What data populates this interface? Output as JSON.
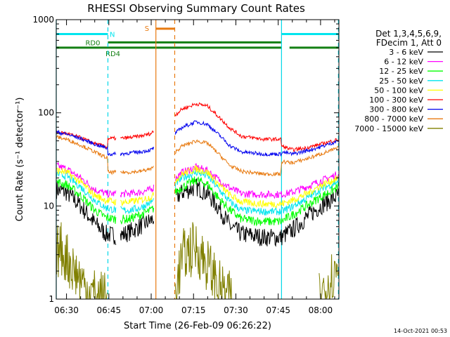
{
  "chart_data": {
    "type": "line",
    "title": "RHESSI Observing Summary Count Rates",
    "xlabel": "Start Time (26-Feb-09 06:26:22)",
    "ylabel": "Count Rate (s⁻¹ detector⁻¹)",
    "y_scale": "log",
    "ylim": [
      1,
      1000
    ],
    "y_ticks": [
      {
        "value": 1,
        "label": "1"
      },
      {
        "value": 10,
        "label": "10"
      },
      {
        "value": 100,
        "label": "100"
      },
      {
        "value": 1000,
        "label": "1000"
      }
    ],
    "x_range": [
      "06:26:22",
      "08:06:30"
    ],
    "x_ticks": [
      {
        "value": "06:30",
        "label": "06:30"
      },
      {
        "value": "06:45",
        "label": "06:45"
      },
      {
        "value": "07:00",
        "label": "07:00"
      },
      {
        "value": "07:15",
        "label": "07:15"
      },
      {
        "value": "07:30",
        "label": "07:30"
      },
      {
        "value": "07:45",
        "label": "07:45"
      },
      {
        "value": "08:00",
        "label": "08:00"
      }
    ],
    "grid": false,
    "legend_position": "right",
    "legend_header": [
      "Det 1,3,4,5,6,9,",
      "FDecim 1, Att 0"
    ],
    "footer_timestamp": "14-Oct-2021 00:53",
    "data_gaps": [
      [
        "06:47:30",
        "06:49:00"
      ],
      [
        "07:01:00",
        "07:08:30"
      ]
    ],
    "vertical_lines": [
      {
        "time": "06:26:22",
        "color": "#00d8e8",
        "style": "solid"
      },
      {
        "time": "06:44:40",
        "color": "#00d8e8",
        "style": "dashed"
      },
      {
        "time": "07:46:10",
        "color": "#00d8e8",
        "style": "solid"
      },
      {
        "time": "08:06:20",
        "color": "#00d8e8",
        "style": "dashed"
      },
      {
        "time": "07:01:40",
        "color": "#e87a10",
        "style": "solid"
      },
      {
        "time": "07:08:20",
        "color": "#e87a10",
        "style": "dashed"
      }
    ],
    "flag_bars": [
      {
        "label": "N",
        "color": "#00e5ee",
        "y": 700,
        "segments": [
          [
            "06:26:22",
            "06:44:40"
          ],
          [
            "07:46:10",
            "08:06:20"
          ]
        ]
      },
      {
        "label": "S",
        "color": "#e87a10",
        "y": 800,
        "segments": [
          [
            "07:01:40",
            "07:08:20"
          ]
        ]
      },
      {
        "label": "RD0",
        "color": "#137f13",
        "y": 570,
        "segments": [
          [
            "06:44:40",
            "07:46:00"
          ]
        ]
      },
      {
        "label": "RD4",
        "color": "#137f13",
        "y": 500,
        "segments": [
          [
            "06:26:22",
            "07:46:10"
          ],
          [
            "07:49:00",
            "08:06:20"
          ]
        ]
      }
    ],
    "series": [
      {
        "name": "3 - 6 keV",
        "color": "#000000",
        "noise": 0.1,
        "points": [
          [
            "06:26:30",
            15
          ],
          [
            "06:30:00",
            14
          ],
          [
            "06:35:00",
            10
          ],
          [
            "06:40:00",
            6.5
          ],
          [
            "06:44:00",
            5
          ],
          [
            "06:47:30",
            4.8
          ],
          [
            "06:49:00",
            4.8
          ],
          [
            "06:52:00",
            5.2
          ],
          [
            "06:56:00",
            6
          ],
          [
            "07:00:00",
            7
          ],
          [
            "07:01:00",
            7.5
          ],
          [
            "07:08:30",
            12
          ],
          [
            "07:11:00",
            14
          ],
          [
            "07:16:00",
            16
          ],
          [
            "07:20:00",
            13.5
          ],
          [
            "07:24:00",
            9.5
          ],
          [
            "07:28:00",
            6
          ],
          [
            "07:32:00",
            5
          ],
          [
            "07:40:00",
            4.6
          ],
          [
            "07:46:00",
            4.6
          ],
          [
            "07:50:00",
            5.5
          ],
          [
            "07:55:00",
            7.5
          ],
          [
            "08:00:00",
            10
          ],
          [
            "08:06:20",
            13
          ]
        ]
      },
      {
        "name": "6 - 12 keV",
        "color": "#ff00ff",
        "noise": 0.04,
        "points": [
          [
            "06:26:30",
            27
          ],
          [
            "06:30:00",
            25
          ],
          [
            "06:35:00",
            20
          ],
          [
            "06:40:00",
            15
          ],
          [
            "06:44:00",
            13.5
          ],
          [
            "06:47:30",
            13.5
          ],
          [
            "06:49:00",
            13.5
          ],
          [
            "06:52:00",
            13.5
          ],
          [
            "06:56:00",
            14
          ],
          [
            "07:00:00",
            15
          ],
          [
            "07:01:00",
            16
          ],
          [
            "07:08:30",
            20
          ],
          [
            "07:11:00",
            23
          ],
          [
            "07:16:00",
            26
          ],
          [
            "07:20:00",
            24
          ],
          [
            "07:24:00",
            19
          ],
          [
            "07:28:00",
            15.5
          ],
          [
            "07:32:00",
            13.5
          ],
          [
            "07:40:00",
            13.3
          ],
          [
            "07:46:00",
            13.3
          ],
          [
            "07:50:00",
            14
          ],
          [
            "07:55:00",
            16
          ],
          [
            "08:00:00",
            18.5
          ],
          [
            "08:06:20",
            22
          ]
        ]
      },
      {
        "name": "12 - 25 keV",
        "color": "#00ff00",
        "noise": 0.05,
        "points": [
          [
            "06:26:30",
            18
          ],
          [
            "06:30:00",
            17
          ],
          [
            "06:35:00",
            13
          ],
          [
            "06:40:00",
            9
          ],
          [
            "06:44:00",
            7.5
          ],
          [
            "06:47:30",
            7.2
          ],
          [
            "06:49:00",
            7.2
          ],
          [
            "06:52:00",
            7.2
          ],
          [
            "06:56:00",
            8
          ],
          [
            "07:00:00",
            9
          ],
          [
            "07:01:00",
            9.5
          ],
          [
            "07:08:30",
            14
          ],
          [
            "07:11:00",
            16
          ],
          [
            "07:16:00",
            19
          ],
          [
            "07:20:00",
            17
          ],
          [
            "07:24:00",
            12
          ],
          [
            "07:28:00",
            9
          ],
          [
            "07:32:00",
            7.2
          ],
          [
            "07:40:00",
            6.8
          ],
          [
            "07:46:00",
            6.8
          ],
          [
            "07:50:00",
            8
          ],
          [
            "07:55:00",
            10
          ],
          [
            "08:00:00",
            12.5
          ],
          [
            "08:06:20",
            16
          ]
        ]
      },
      {
        "name": "25 - 50 keV",
        "color": "#00e5ee",
        "noise": 0.04,
        "points": [
          [
            "06:26:30",
            22
          ],
          [
            "06:30:00",
            21
          ],
          [
            "06:35:00",
            16
          ],
          [
            "06:40:00",
            11.5
          ],
          [
            "06:44:00",
            9.5
          ],
          [
            "06:47:30",
            9
          ],
          [
            "06:49:00",
            9
          ],
          [
            "06:52:00",
            9
          ],
          [
            "06:56:00",
            9.5
          ],
          [
            "07:00:00",
            11
          ],
          [
            "07:01:00",
            11.5
          ],
          [
            "07:08:30",
            17
          ],
          [
            "07:11:00",
            20
          ],
          [
            "07:16:00",
            23
          ],
          [
            "07:20:00",
            21
          ],
          [
            "07:24:00",
            15
          ],
          [
            "07:28:00",
            11
          ],
          [
            "07:32:00",
            9
          ],
          [
            "07:40:00",
            8.7
          ],
          [
            "07:46:00",
            8.7
          ],
          [
            "07:50:00",
            9.8
          ],
          [
            "07:55:00",
            12
          ],
          [
            "08:00:00",
            15
          ],
          [
            "08:06:20",
            18.5
          ]
        ]
      },
      {
        "name": "50 - 100 keV",
        "color": "#ffff00",
        "noise": 0.04,
        "points": [
          [
            "06:26:30",
            24
          ],
          [
            "06:30:00",
            23
          ],
          [
            "06:35:00",
            18
          ],
          [
            "06:40:00",
            13
          ],
          [
            "06:44:00",
            11.5
          ],
          [
            "06:47:30",
            11
          ],
          [
            "06:49:00",
            11
          ],
          [
            "06:52:00",
            11
          ],
          [
            "06:56:00",
            11.5
          ],
          [
            "07:00:00",
            12.5
          ],
          [
            "07:01:00",
            13
          ],
          [
            "07:08:30",
            19
          ],
          [
            "07:11:00",
            22
          ],
          [
            "07:16:00",
            25
          ],
          [
            "07:20:00",
            23
          ],
          [
            "07:24:00",
            17
          ],
          [
            "07:28:00",
            13
          ],
          [
            "07:32:00",
            11
          ],
          [
            "07:40:00",
            10.5
          ],
          [
            "07:46:00",
            10.5
          ],
          [
            "07:50:00",
            11.5
          ],
          [
            "07:55:00",
            13.5
          ],
          [
            "08:00:00",
            16.5
          ],
          [
            "08:06:20",
            20
          ]
        ]
      },
      {
        "name": "100 - 300 keV",
        "color": "#ff0000",
        "noise": 0.02,
        "points": [
          [
            "06:26:30",
            62
          ],
          [
            "06:30:00",
            60
          ],
          [
            "06:35:00",
            54
          ],
          [
            "06:40:00",
            47
          ],
          [
            "06:44:00",
            43
          ],
          [
            "06:44:40",
            43
          ],
          [
            "06:44:41",
            53
          ],
          [
            "06:47:30",
            53
          ],
          [
            "06:49:00",
            53
          ],
          [
            "06:52:00",
            54
          ],
          [
            "06:56:00",
            56
          ],
          [
            "07:00:00",
            60
          ],
          [
            "07:01:00",
            64
          ],
          [
            "07:08:30",
            95
          ],
          [
            "07:11:00",
            110
          ],
          [
            "07:16:00",
            125
          ],
          [
            "07:20:00",
            118
          ],
          [
            "07:24:00",
            90
          ],
          [
            "07:28:00",
            68
          ],
          [
            "07:32:00",
            56
          ],
          [
            "07:40:00",
            52
          ],
          [
            "07:46:00",
            52
          ],
          [
            "07:46:10",
            44
          ],
          [
            "07:50:00",
            40
          ],
          [
            "07:55:00",
            42
          ],
          [
            "08:00:00",
            46
          ],
          [
            "08:06:20",
            52
          ]
        ]
      },
      {
        "name": "300 - 800 keV",
        "color": "#0000ee",
        "noise": 0.02,
        "points": [
          [
            "06:26:30",
            62
          ],
          [
            "06:30:00",
            59
          ],
          [
            "06:35:00",
            53
          ],
          [
            "06:40:00",
            46
          ],
          [
            "06:44:00",
            42
          ],
          [
            "06:44:40",
            42
          ],
          [
            "06:44:41",
            36
          ],
          [
            "06:47:30",
            36
          ],
          [
            "06:49:00",
            36
          ],
          [
            "06:52:00",
            37
          ],
          [
            "06:56:00",
            38
          ],
          [
            "07:00:00",
            40
          ],
          [
            "07:01:00",
            42
          ],
          [
            "07:08:30",
            60
          ],
          [
            "07:11:00",
            70
          ],
          [
            "07:16:00",
            80
          ],
          [
            "07:20:00",
            75
          ],
          [
            "07:24:00",
            58
          ],
          [
            "07:28:00",
            44
          ],
          [
            "07:32:00",
            38
          ],
          [
            "07:40:00",
            36
          ],
          [
            "07:46:00",
            36
          ],
          [
            "07:46:10",
            38
          ],
          [
            "07:50:00",
            36
          ],
          [
            "07:55:00",
            39
          ],
          [
            "08:00:00",
            43
          ],
          [
            "08:06:20",
            50
          ]
        ]
      },
      {
        "name": "800 - 7000 keV",
        "color": "#e87a10",
        "noise": 0.02,
        "points": [
          [
            "06:26:30",
            55
          ],
          [
            "06:30:00",
            52
          ],
          [
            "06:35:00",
            45
          ],
          [
            "06:40:00",
            38
          ],
          [
            "06:44:00",
            33
          ],
          [
            "06:44:40",
            33
          ],
          [
            "06:44:41",
            23
          ],
          [
            "06:47:30",
            23
          ],
          [
            "06:49:00",
            23
          ],
          [
            "06:52:00",
            23
          ],
          [
            "06:56:00",
            23.5
          ],
          [
            "07:00:00",
            25
          ],
          [
            "07:01:00",
            26
          ],
          [
            "07:08:30",
            38
          ],
          [
            "07:11:00",
            44
          ],
          [
            "07:16:00",
            50
          ],
          [
            "07:20:00",
            47
          ],
          [
            "07:24:00",
            36
          ],
          [
            "07:28:00",
            27
          ],
          [
            "07:32:00",
            23.5
          ],
          [
            "07:40:00",
            22
          ],
          [
            "07:46:00",
            22
          ],
          [
            "07:46:10",
            30
          ],
          [
            "07:50:00",
            29
          ],
          [
            "07:55:00",
            32
          ],
          [
            "08:00:00",
            36
          ],
          [
            "08:06:20",
            42
          ]
        ]
      },
      {
        "name": "7000 - 15000 keV",
        "color": "#808000",
        "noise": 0.3,
        "points": [
          [
            "06:26:30",
            3.2
          ],
          [
            "06:28:00",
            3.5
          ],
          [
            "06:31:00",
            2.5
          ],
          [
            "06:34:00",
            1.8
          ],
          [
            "06:37:00",
            1.3
          ],
          [
            "06:40:00",
            1.1
          ],
          [
            "06:44:00",
            1.0
          ],
          [
            "07:08:30",
            1.2
          ],
          [
            "07:11:00",
            2.8
          ],
          [
            "07:13:00",
            3.2
          ],
          [
            "07:16:00",
            3.6
          ],
          [
            "07:19:00",
            2.6
          ],
          [
            "07:22:00",
            1.8
          ],
          [
            "07:25:00",
            1.2
          ],
          [
            "07:28:00",
            1.0
          ],
          [
            "08:00:00",
            1.1
          ],
          [
            "08:03:00",
            1.6
          ],
          [
            "08:06:20",
            2.2
          ]
        ]
      }
    ]
  }
}
